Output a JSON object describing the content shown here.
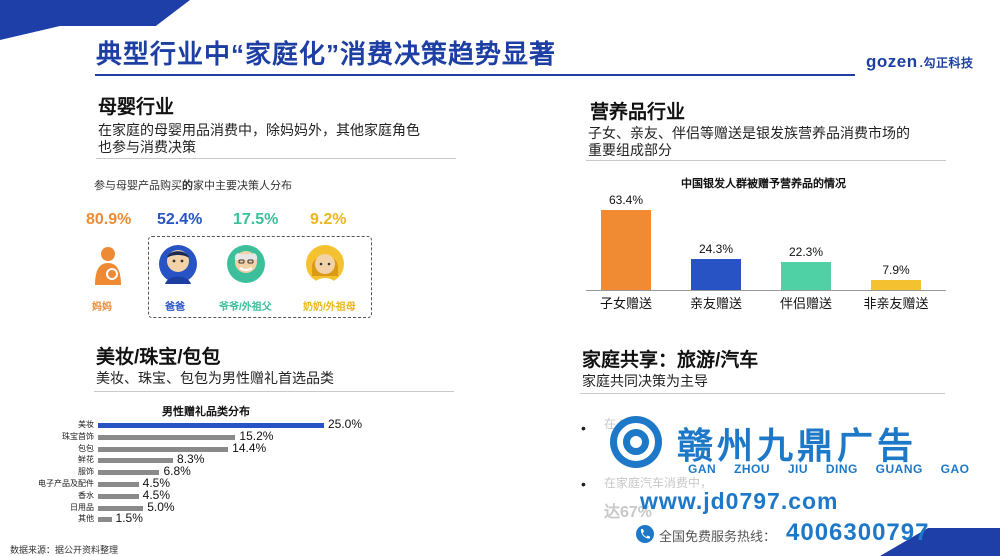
{
  "header": {
    "title": "典型行业中“家庭化”消费决策趋势显著",
    "logo_main": "gozen",
    "logo_sub": ".勾正科技"
  },
  "maternal": {
    "heading": "母婴行业",
    "desc_line1": "在家庭的母婴用品消费中，除妈妈外，其他家庭角色",
    "desc_line2": "也参与消费决策",
    "subtitle_a": "参与母婴产品购买",
    "subtitle_b": "的",
    "subtitle_c": "家中主要决策人分布",
    "roles": [
      {
        "pct": "80.9%",
        "label": "妈妈",
        "color": "#ef8a34",
        "icon": "mother-icon"
      },
      {
        "pct": "52.4%",
        "label": "爸爸",
        "color": "#2753c4",
        "icon": "father-icon"
      },
      {
        "pct": "17.5%",
        "label": "爷爷/外祖父",
        "color": "#3cbf9a",
        "icon": "grandfather-icon"
      },
      {
        "pct": "9.2%",
        "label": "奶奶/外祖母",
        "color": "#e8b81c",
        "icon": "grandmother-icon"
      }
    ]
  },
  "nutrition": {
    "heading": "营养品行业",
    "desc_line1": "子女、亲友、伴侣等赠送是银发族营养品消费市场的",
    "desc_line2": "重要组成部分"
  },
  "beauty": {
    "heading": "美妆/珠宝/包包",
    "desc": "美妆、珠宝、包包为男性赠礼首选品类"
  },
  "family": {
    "heading": "家庭共享：旅游/汽车",
    "desc": "家庭共同决策为主导",
    "bullet1": "在 % 的 ",
    "bullet2": "在家庭汽车消费中，",
    "bullet2b": "达67%"
  },
  "source": "数据来源：据公开资料整理",
  "watermark": {
    "big": "赣州九鼎广告",
    "pinyin": "GAN ZHOU JIU DING GUANG GAO",
    "url": "www.jd0797.com",
    "tel_label": "全国免费服务热线：",
    "tel": "4006300797"
  },
  "chart_data": [
    {
      "type": "bar",
      "title": "中国银发人群被赠予营养品的情况",
      "categories": [
        "子女赠送",
        "亲友赠送",
        "伴侣赠送",
        "非亲友赠送"
      ],
      "values": [
        63.4,
        24.3,
        22.3,
        7.9
      ],
      "value_labels": [
        "63.4%",
        "24.3%",
        "22.3%",
        "7.9%"
      ],
      "colors": [
        "#f08a33",
        "#2753c4",
        "#4fd1a5",
        "#f4c231"
      ],
      "ylim": [
        0,
        70
      ],
      "grid": false
    },
    {
      "type": "bar",
      "orientation": "horizontal",
      "title": "男性赠礼品类分布",
      "categories": [
        "美妆",
        "珠宝首饰",
        "包包",
        "鲜花",
        "服饰",
        "电子产品及配件",
        "香水",
        "日用品",
        "其他"
      ],
      "values": [
        25.0,
        15.2,
        14.4,
        8.3,
        6.8,
        4.5,
        4.5,
        5.0,
        1.5
      ],
      "value_labels": [
        "25.0%",
        "15.2%",
        "14.4%",
        "8.3%",
        "6.8%",
        "4.5%",
        "4.5%",
        "5.0%",
        "1.5%"
      ],
      "highlight_color": "#2753c4",
      "base_color": "#8a8a8a",
      "xlim": [
        0,
        25
      ]
    }
  ]
}
